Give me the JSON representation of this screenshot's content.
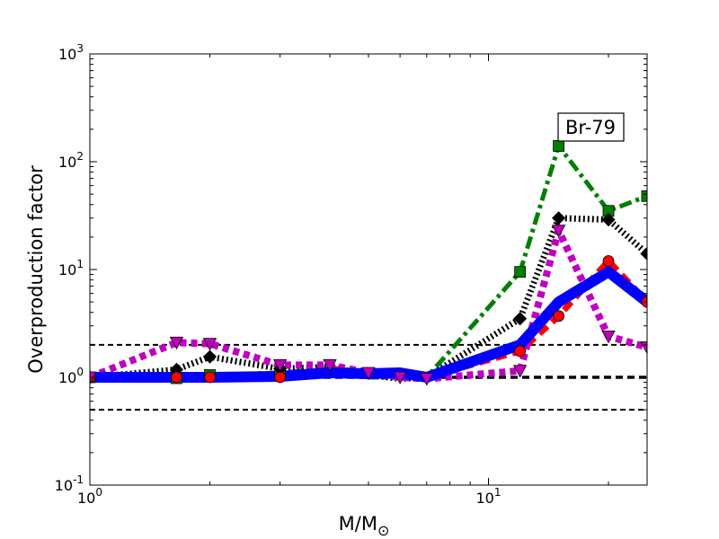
{
  "chart_data": {
    "type": "line",
    "title": "",
    "xlabel": "M/M",
    "xlabel_subscript": "⊙",
    "ylabel": "Overproduction factor",
    "xscale": "log",
    "yscale": "log",
    "xlim": [
      1,
      25
    ],
    "ylim": [
      0.1,
      1000
    ],
    "x_ticks": [
      {
        "value": 1,
        "base": "10",
        "exp": "0"
      },
      {
        "value": 10,
        "base": "10",
        "exp": "1"
      }
    ],
    "y_ticks": [
      {
        "value": 0.1,
        "base": "10",
        "exp": "-1"
      },
      {
        "value": 1,
        "base": "10",
        "exp": "0"
      },
      {
        "value": 10,
        "base": "10",
        "exp": "1"
      },
      {
        "value": 100,
        "base": "10",
        "exp": "2"
      },
      {
        "value": 1000,
        "base": "10",
        "exp": "3"
      }
    ],
    "reference_lines": [
      {
        "y": 2.0,
        "color": "#000000",
        "style": "dashed",
        "weight": "thin"
      },
      {
        "y": 1.0,
        "color": "#000000",
        "style": "dashed",
        "weight": "thick"
      },
      {
        "y": 0.5,
        "color": "#000000",
        "style": "dashed",
        "weight": "thin"
      }
    ],
    "annotation": "Br-79",
    "grid": false,
    "series": [
      {
        "color": "#008000",
        "dash": "dashdot",
        "marker": "square",
        "markevery": "partial",
        "x": [
          1,
          1.65,
          2,
          3,
          4,
          5,
          6,
          7,
          12,
          15,
          20,
          25
        ],
        "y": [
          1.0,
          0.98,
          1.05,
          1.1,
          1.2,
          1.0,
          1.0,
          1.0,
          9.5,
          140,
          35,
          48
        ]
      },
      {
        "color": "#000000",
        "dash": "dotted",
        "marker": "diamond",
        "markevery": "partial",
        "x": [
          1,
          1.65,
          2,
          3,
          4,
          5,
          6,
          7,
          12,
          15,
          20,
          25
        ],
        "y": [
          1.0,
          1.18,
          1.55,
          1.2,
          1.25,
          1.05,
          0.97,
          1.0,
          3.5,
          30,
          29,
          14
        ]
      },
      {
        "color": "#ff0000",
        "dash": "dashed",
        "marker": "circle",
        "markevery": "partial",
        "x": [
          1,
          1.65,
          2,
          3,
          4,
          5,
          6,
          7,
          12,
          15,
          20,
          25
        ],
        "y": [
          1.0,
          1.0,
          1.0,
          1.0,
          1.2,
          1.1,
          1.0,
          1.0,
          1.75,
          3.7,
          12,
          5.0
        ]
      },
      {
        "color": "#bf00bf",
        "dash": "dotted-heavy",
        "marker": "triangle-down",
        "markevery": "all",
        "x": [
          1,
          1.65,
          2,
          3,
          4,
          5,
          6,
          7,
          12,
          15,
          20,
          25
        ],
        "y": [
          1.0,
          2.1,
          2.05,
          1.3,
          1.3,
          1.1,
          1.0,
          0.97,
          1.15,
          23,
          2.4,
          1.9
        ]
      },
      {
        "color": "#0000ff",
        "dash": "solid",
        "marker": "none",
        "markevery": "none",
        "x": [
          1,
          1.65,
          2,
          3,
          4,
          5,
          6,
          7,
          12,
          15,
          20,
          25
        ],
        "y": [
          1.0,
          1.0,
          1.0,
          1.02,
          1.1,
          1.08,
          1.1,
          1.0,
          2.0,
          5.0,
          9.5,
          5.0
        ]
      }
    ]
  }
}
